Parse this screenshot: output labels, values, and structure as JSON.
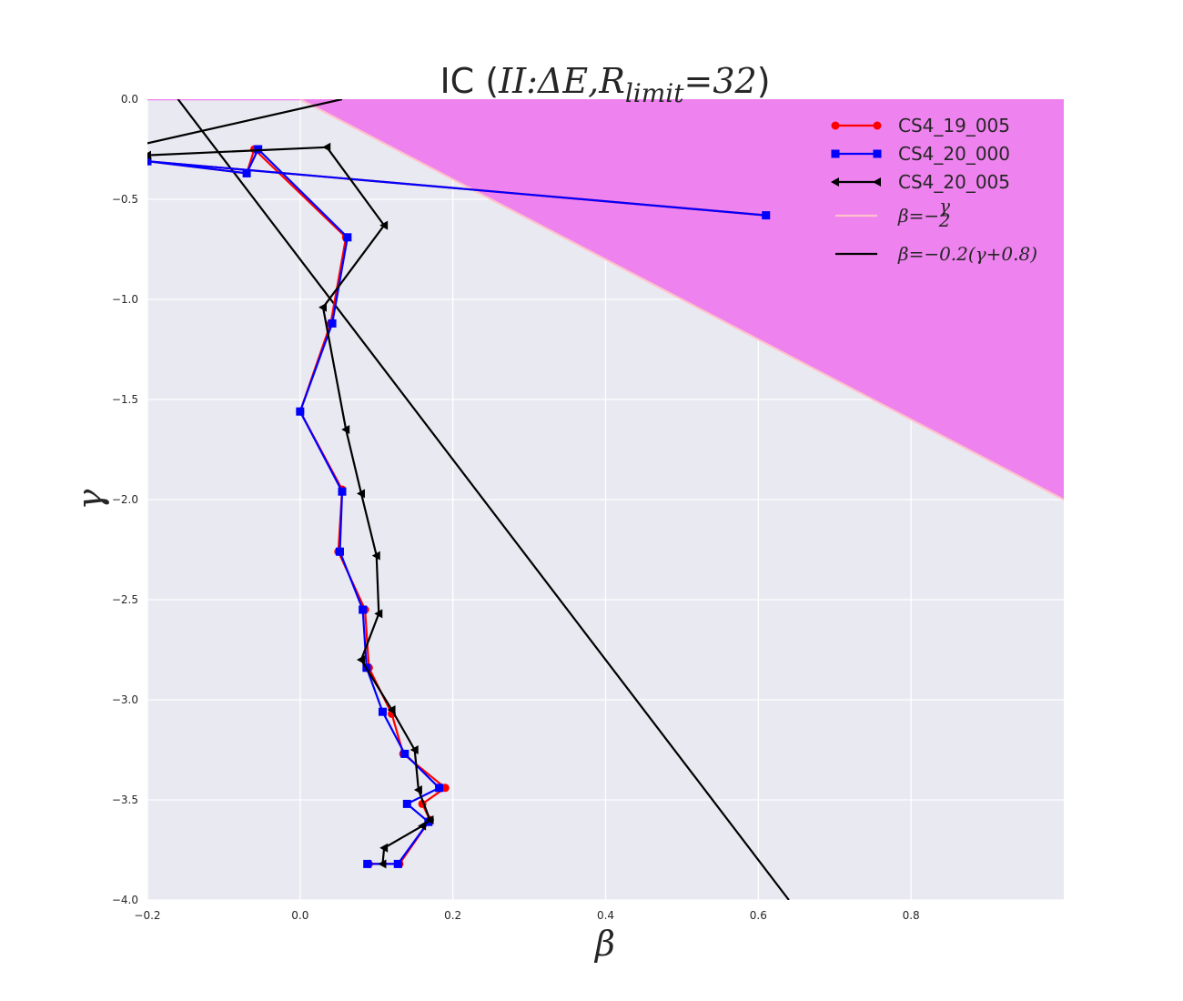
{
  "chart_data": {
    "type": "line",
    "title": {
      "prefix": "IC (",
      "math": "II:ΔE,R",
      "subscript": "limit",
      "math_after": "=32",
      "suffix": ")"
    },
    "xlabel": "β",
    "ylabel": "γ",
    "xlim": [
      -0.2,
      1.0
    ],
    "ylim": [
      -4.0,
      0.0
    ],
    "xticks": [
      -0.2,
      0.0,
      0.2,
      0.4,
      0.6,
      0.8
    ],
    "xtick_labels": [
      "−0.2",
      "0.0",
      "0.2",
      "0.4",
      "0.6",
      "0.8"
    ],
    "yticks": [
      0.0,
      -0.5,
      -1.0,
      -1.5,
      -2.0,
      -2.5,
      -3.0,
      -3.5,
      -4.0
    ],
    "ytick_labels": [
      "0.0",
      "−0.5",
      "−1.0",
      "−1.5",
      "−2.0",
      "−2.5",
      "−3.0",
      "−3.5",
      "−4.0"
    ],
    "grid": true,
    "legend_position": "top-right",
    "colors": {
      "background": "#e9e9f1",
      "grid": "#ffffff",
      "fill_region": "#ee82ee",
      "line_pink": "#ffc0cb",
      "line_black": "#000000",
      "series_red": "#ff0000",
      "series_blue": "#0000ff",
      "series_black": "#000000"
    },
    "fill_region": {
      "description_label": "",
      "boundary": "beta = -gamma/2"
    },
    "reference_lines": [
      {
        "legend": "β=−γ/2",
        "legend_parts": {
          "lhs": "β=−",
          "num": "γ",
          "den": "2"
        },
        "color": "#ffc0cb",
        "points": [
          [
            0.0,
            0.0
          ],
          [
            1.0,
            -2.0
          ]
        ]
      },
      {
        "legend": "β=−0.2(γ+0.8)",
        "color": "#000000",
        "points": [
          [
            -0.16,
            0.0
          ],
          [
            0.64,
            -4.0
          ]
        ]
      },
      {
        "legend": "",
        "color": "#000000",
        "points": [
          [
            -0.2,
            -0.22
          ],
          [
            0.055,
            0.0
          ]
        ]
      }
    ],
    "series": [
      {
        "name": "CS4_19_005",
        "color": "#ff0000",
        "marker": "circle",
        "x": [
          0.61,
          -0.2,
          -0.07,
          -0.06,
          0.06,
          0.04,
          0.0,
          0.055,
          0.05,
          0.085,
          0.09,
          0.12,
          0.135,
          0.19,
          0.16,
          0.17,
          0.13,
          0.09
        ],
        "y": [
          -0.58,
          -0.31,
          -0.37,
          -0.25,
          -0.69,
          -1.12,
          -1.56,
          -1.95,
          -2.26,
          -2.55,
          -2.84,
          -3.07,
          -3.27,
          -3.44,
          -3.52,
          -3.6,
          -3.82,
          -3.82
        ]
      },
      {
        "name": "CS4_20_000",
        "color": "#0000ff",
        "marker": "square",
        "x": [
          0.61,
          -0.2,
          -0.07,
          -0.055,
          0.062,
          0.042,
          0.0,
          0.055,
          0.052,
          0.082,
          0.087,
          0.108,
          0.137,
          0.182,
          0.14,
          0.168,
          0.128,
          0.088
        ],
        "y": [
          -0.58,
          -0.31,
          -0.37,
          -0.25,
          -0.69,
          -1.12,
          -1.56,
          -1.96,
          -2.26,
          -2.55,
          -2.84,
          -3.06,
          -3.27,
          -3.44,
          -3.52,
          -3.61,
          -3.82,
          -3.82
        ]
      },
      {
        "name": "CS4_20_005",
        "color": "#000000",
        "marker": "triangle-left",
        "x": [
          -0.2,
          0.035,
          0.11,
          0.03,
          0.06,
          0.08,
          0.1,
          0.103,
          0.08,
          0.12,
          0.15,
          0.155,
          0.17,
          0.16,
          0.11,
          0.108
        ],
        "y": [
          -0.28,
          -0.24,
          -0.63,
          -1.04,
          -1.65,
          -1.97,
          -2.28,
          -2.57,
          -2.8,
          -3.05,
          -3.25,
          -3.45,
          -3.6,
          -3.63,
          -3.74,
          -3.82
        ]
      }
    ]
  }
}
